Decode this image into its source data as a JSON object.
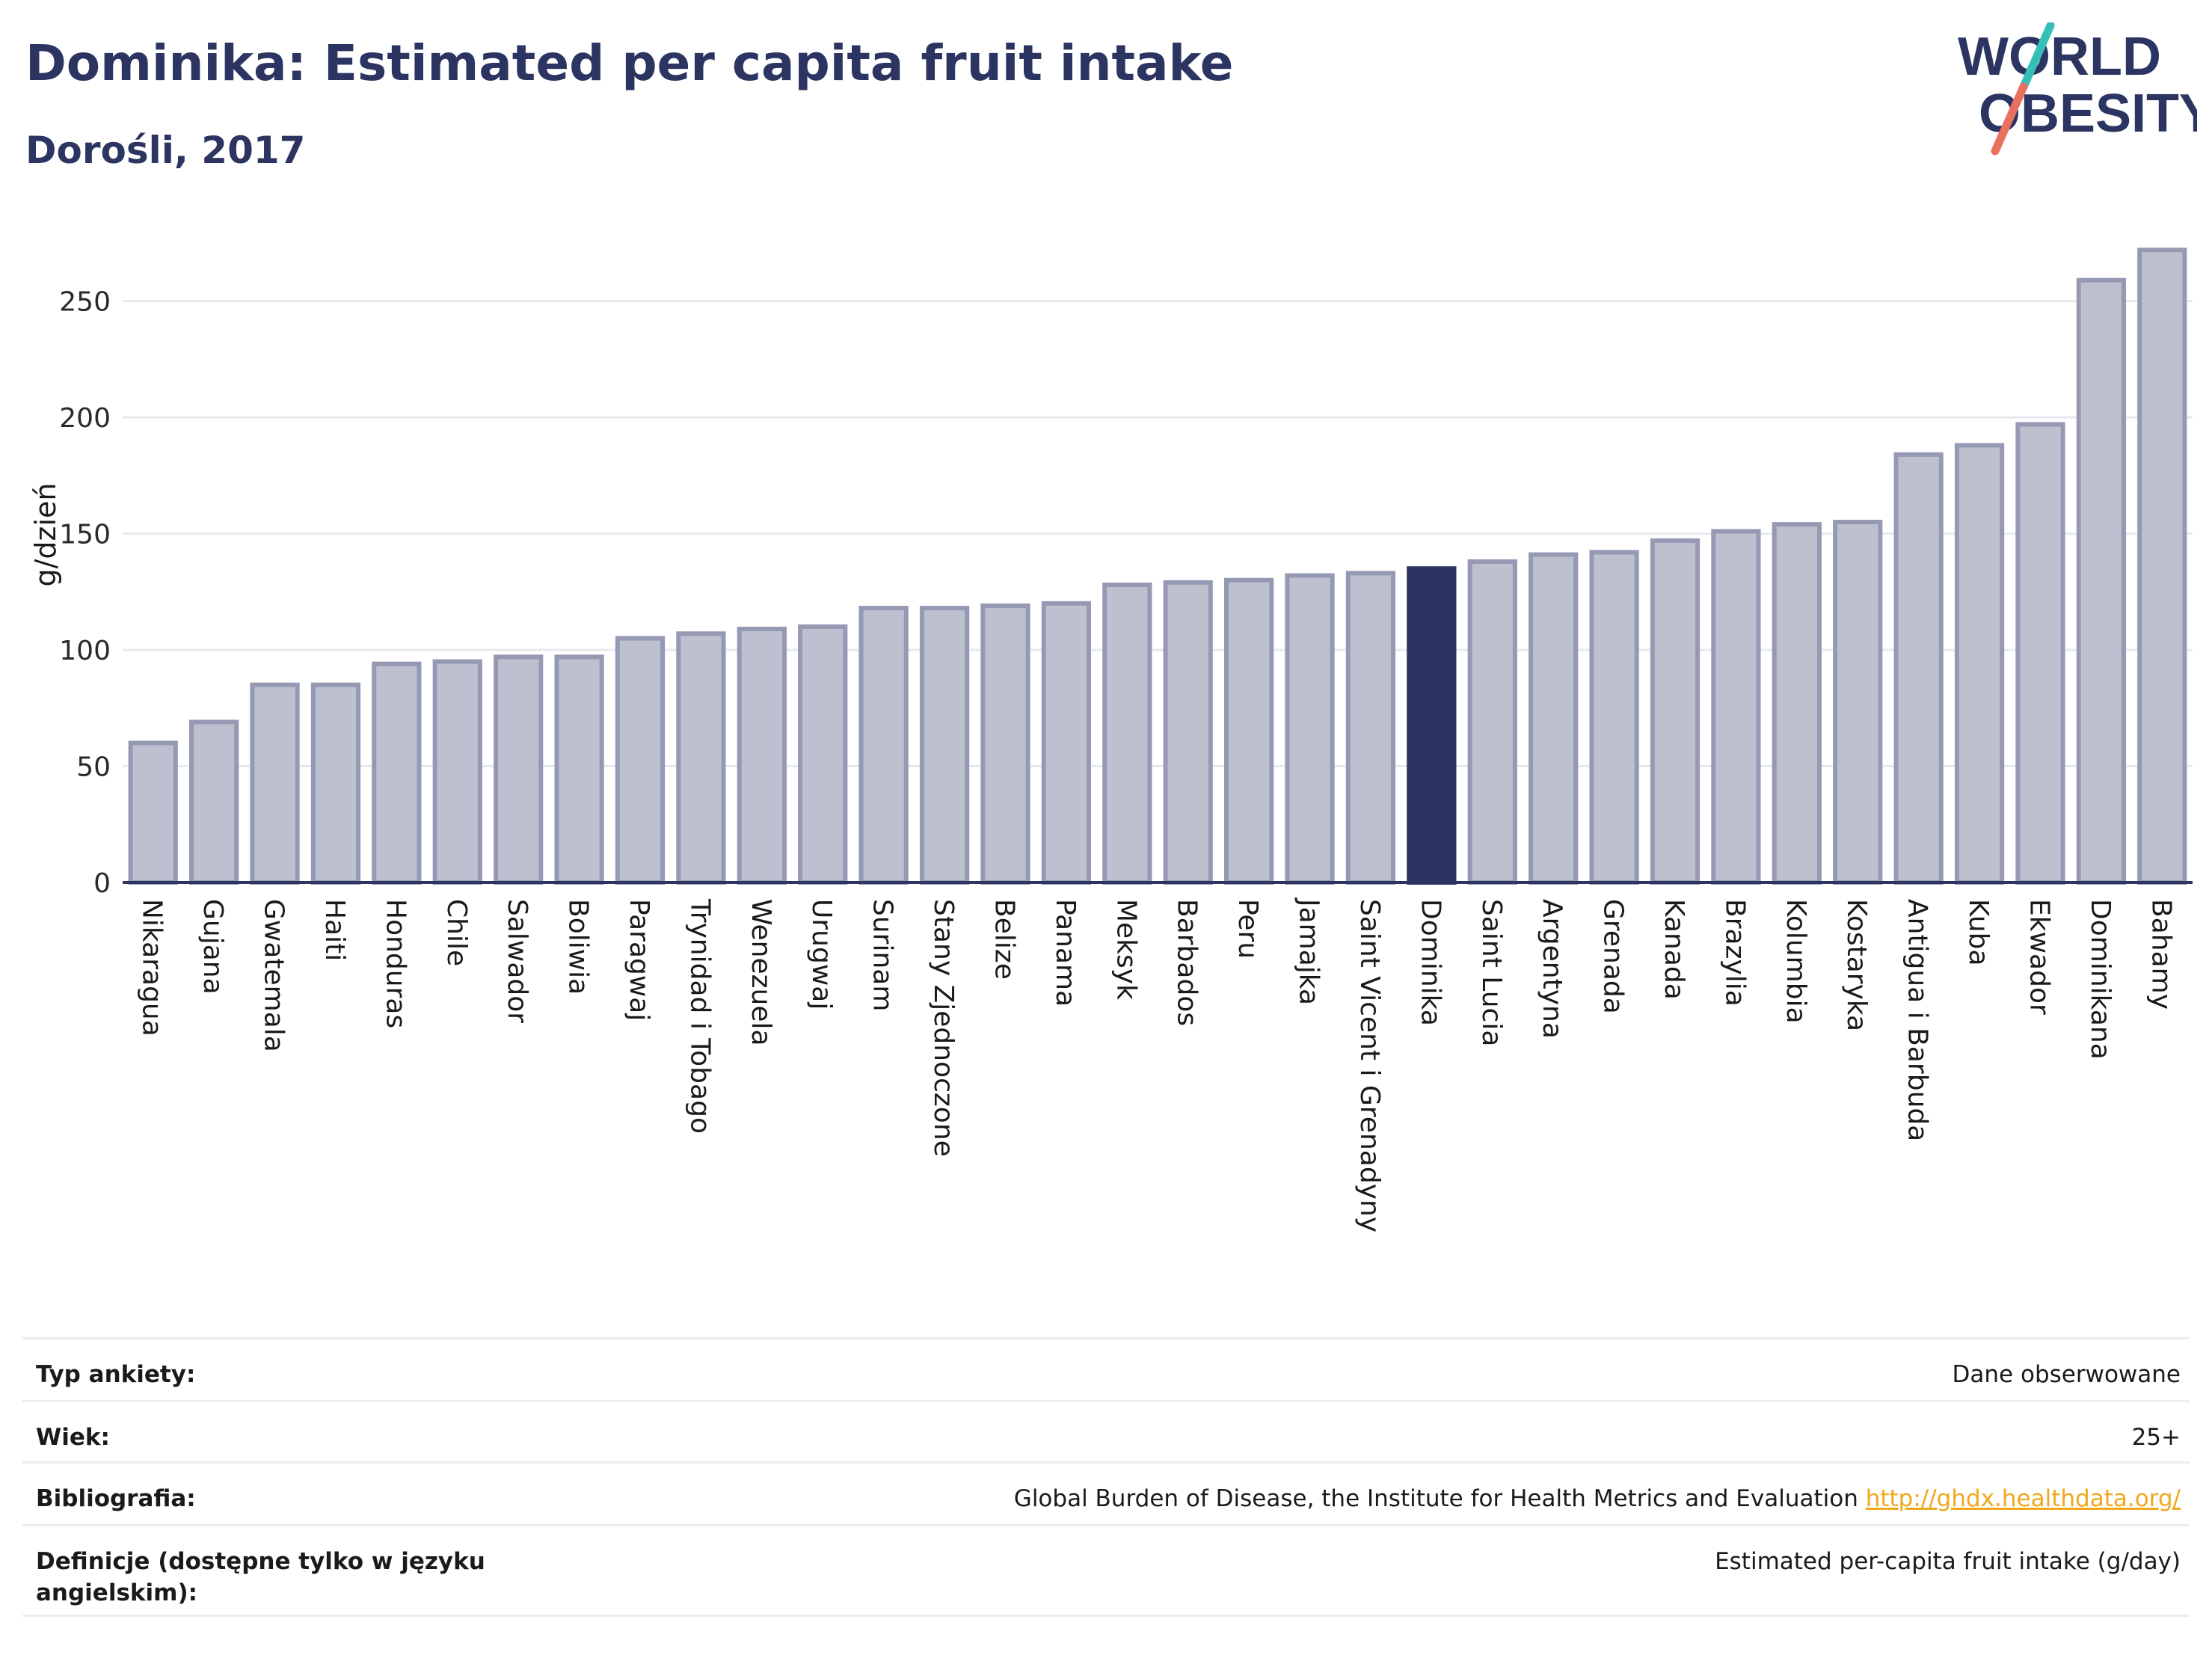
{
  "header": {
    "title": "Dominika: Estimated per capita fruit intake",
    "subtitle": "Dorośli, 2017"
  },
  "logo": {
    "line1": "WORLD",
    "line2": "OBESITY"
  },
  "colors": {
    "highlight": "#2c3561",
    "bar_fill": "#bcc0cf",
    "bar_stroke": "#9599b3",
    "grid": "#e8e9ef",
    "text": "#2c3561",
    "link": "#f0a81c",
    "logo_teal": "#35bfb7",
    "logo_coral": "#e8705f"
  },
  "chart_data": {
    "type": "bar",
    "ylabel": "g/dzień",
    "ylim": [
      0,
      283
    ],
    "yticks": [
      0,
      50,
      100,
      150,
      200,
      250
    ],
    "grid": true,
    "highlight": "Dominika",
    "categories": [
      "Nikaragua",
      "Gujana",
      "Gwatemala",
      "Haiti",
      "Honduras",
      "Chile",
      "Salwador",
      "Boliwia",
      "Paragwaj",
      "Trynidad i Tobago",
      "Wenezuela",
      "Urugwaj",
      "Surinam",
      "Stany Zjednoczone",
      "Belize",
      "Panama",
      "Meksyk",
      "Barbados",
      "Peru",
      "Jamajka",
      "Saint Vicent i Grenadyny",
      "Dominika",
      "Saint Lucia",
      "Argentyna",
      "Grenada",
      "Kanada",
      "Brazylia",
      "Kolumbia",
      "Kostaryka",
      "Antigua i Barbuda",
      "Kuba",
      "Ekwador",
      "Dominikana",
      "Bahamy"
    ],
    "values": [
      60,
      69,
      85,
      85,
      94,
      95,
      97,
      97,
      105,
      107,
      109,
      110,
      118,
      118,
      119,
      120,
      128,
      129,
      130,
      132,
      133,
      135,
      138,
      141,
      142,
      147,
      151,
      154,
      155,
      184,
      188,
      197,
      259,
      272
    ]
  },
  "metadata": [
    {
      "label": "Typ ankiety:",
      "value": "Dane obserwowane"
    },
    {
      "label": "Wiek:",
      "value": "25+"
    },
    {
      "label": "Bibliografia:",
      "value": "Global Burden of Disease, the Institute for Health Metrics and Evaluation",
      "link": "http://ghdx.healthdata.org/"
    },
    {
      "label": "Definicje (dostępne tylko w języku angielskim):",
      "value": "Estimated per-capita fruit intake (g/day)"
    }
  ]
}
